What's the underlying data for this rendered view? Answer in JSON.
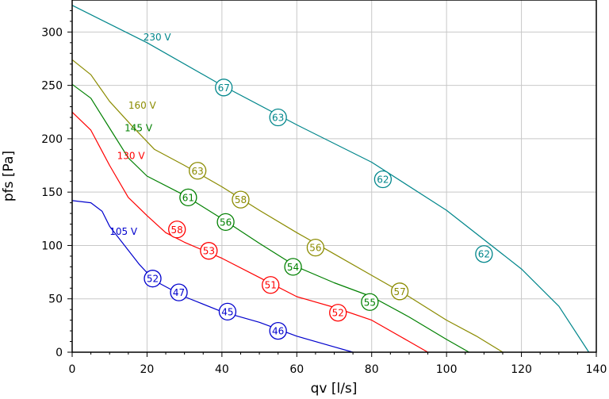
{
  "chart_data": {
    "type": "line",
    "xlabel": "qv [l/s]",
    "ylabel": "pfs [Pa]",
    "xlim": [
      0,
      140
    ],
    "ylim": [
      0,
      330
    ],
    "xticks": [
      0,
      20,
      40,
      60,
      80,
      100,
      120,
      140
    ],
    "yticks": [
      0,
      50,
      100,
      150,
      200,
      250,
      300
    ],
    "grid": true,
    "series": [
      {
        "name": "230 V",
        "color": "#00868b",
        "x": [
          0,
          20,
          40,
          60,
          80,
          100,
          120,
          130,
          138
        ],
        "y": [
          325,
          290,
          250,
          213,
          178,
          133,
          78,
          43,
          0
        ],
        "markers": [
          {
            "x": 40.5,
            "y": 248,
            "label": "67"
          },
          {
            "x": 55.0,
            "y": 220,
            "label": "63"
          },
          {
            "x": 83.0,
            "y": 162,
            "label": "62"
          },
          {
            "x": 110.0,
            "y": 92,
            "label": "62"
          }
        ]
      },
      {
        "name": "160 V",
        "color": "#8b8b00",
        "x": [
          0,
          5,
          10,
          16,
          22,
          30,
          40,
          50,
          60,
          70,
          80,
          90,
          100,
          108,
          115
        ],
        "y": [
          274,
          260,
          235,
          212,
          190,
          175,
          155,
          133,
          112,
          92,
          72,
          52,
          30,
          15,
          0
        ],
        "markers": [
          {
            "x": 33.5,
            "y": 170,
            "label": "63"
          },
          {
            "x": 45.0,
            "y": 143,
            "label": "58"
          },
          {
            "x": 65.0,
            "y": 98,
            "label": "56"
          },
          {
            "x": 87.5,
            "y": 57,
            "label": "57"
          }
        ]
      },
      {
        "name": "145 V",
        "color": "#008000",
        "x": [
          0,
          5,
          10,
          15,
          20,
          30,
          40,
          50,
          60,
          70,
          80,
          90,
          100,
          106
        ],
        "y": [
          251,
          238,
          210,
          182,
          165,
          147,
          125,
          102,
          80,
          65,
          52,
          33,
          12,
          0
        ],
        "markers": [
          {
            "x": 31.0,
            "y": 145,
            "label": "61"
          },
          {
            "x": 41.0,
            "y": 122,
            "label": "56"
          },
          {
            "x": 59.0,
            "y": 80,
            "label": "54"
          },
          {
            "x": 79.5,
            "y": 47,
            "label": "55"
          }
        ]
      },
      {
        "name": "130 V",
        "color": "#ff0000",
        "x": [
          0,
          5,
          10,
          15,
          20,
          25,
          30,
          40,
          50,
          60,
          70,
          80,
          90,
          95
        ],
        "y": [
          225,
          208,
          175,
          145,
          128,
          112,
          103,
          88,
          70,
          52,
          42,
          30,
          10,
          0
        ],
        "markers": [
          {
            "x": 28.0,
            "y": 115,
            "label": "58"
          },
          {
            "x": 36.5,
            "y": 95,
            "label": "53"
          },
          {
            "x": 53.0,
            "y": 63,
            "label": "51"
          },
          {
            "x": 71.0,
            "y": 37,
            "label": "52"
          }
        ]
      },
      {
        "name": "105 V",
        "color": "#0000cd",
        "x": [
          0,
          5,
          8,
          10,
          14,
          18,
          22,
          30,
          40,
          50,
          60,
          70,
          75
        ],
        "y": [
          142,
          140,
          132,
          118,
          100,
          82,
          67,
          52,
          38,
          28,
          15,
          5,
          0
        ],
        "markers": [
          {
            "x": 21.5,
            "y": 69,
            "label": "52"
          },
          {
            "x": 28.5,
            "y": 56,
            "label": "47"
          },
          {
            "x": 41.5,
            "y": 38,
            "label": "45"
          },
          {
            "x": 55.0,
            "y": 20,
            "label": "46"
          }
        ]
      }
    ],
    "series_labels": [
      {
        "series": 0,
        "x": 19,
        "y": 292
      },
      {
        "series": 1,
        "x": 15,
        "y": 228
      },
      {
        "series": 2,
        "x": 14,
        "y": 207
      },
      {
        "series": 3,
        "x": 12,
        "y": 181
      },
      {
        "series": 4,
        "x": 10,
        "y": 110
      }
    ]
  }
}
